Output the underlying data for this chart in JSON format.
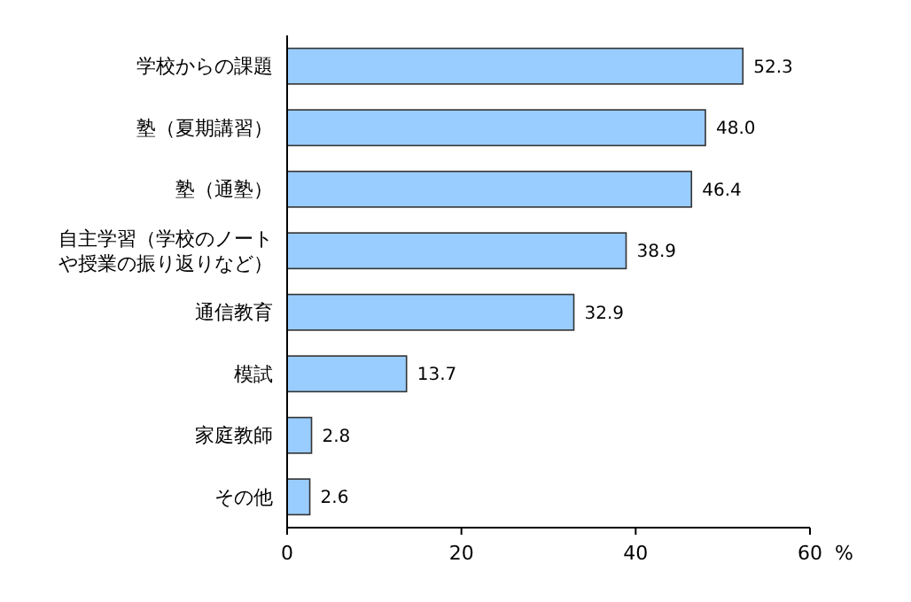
{
  "chart_data": {
    "type": "bar",
    "orientation": "horizontal",
    "categories": [
      "学校からの課題",
      "塾（夏期講習）",
      "塾（通塾）",
      "自主学習（学校のノートや授業の振り返りなど）",
      "通信教育",
      "模試",
      "家庭教師",
      "その他"
    ],
    "values": [
      52.3,
      48.0,
      46.4,
      38.9,
      32.9,
      13.7,
      2.8,
      2.6
    ],
    "value_labels": [
      "52.3",
      "48.0",
      "46.4",
      "38.9",
      "32.9",
      "13.7",
      "2.8",
      "2.6"
    ],
    "color": "#99ccff",
    "xlim": [
      0,
      60
    ],
    "xticks": [
      0,
      20,
      40,
      60
    ],
    "xlabel": "%",
    "grid": false
  }
}
